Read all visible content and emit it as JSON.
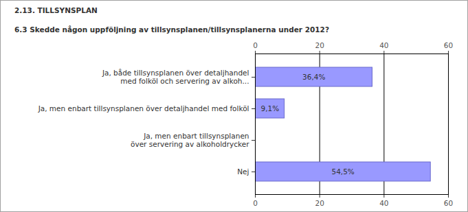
{
  "chart_data": {
    "type": "bar",
    "title": "2.13. TILLSYNSPLAN",
    "subtitle": "6.3 Skedde någon uppföljning av tillsynsplanen/tillsynsplanerna under 2012?",
    "orientation": "horizontal",
    "categories": [
      "Ja, både tillsynsplanen över detaljhandel med folköl och servering av alkoh...",
      "Ja, men enbart tillsynsplanen över detaljhandel med folköl",
      "Ja, men enbart tillsynsplanen över servering av alkoholdrycker",
      "Nej"
    ],
    "values": [
      36.4,
      9.1,
      0,
      54.5
    ],
    "value_labels": [
      "36,4%",
      "9,1%",
      null,
      "54,5%"
    ],
    "data_labels": true,
    "color": "#9999ff",
    "xlim": [
      0,
      60
    ],
    "xticks": [
      0,
      20,
      40,
      60
    ],
    "grid": true
  }
}
